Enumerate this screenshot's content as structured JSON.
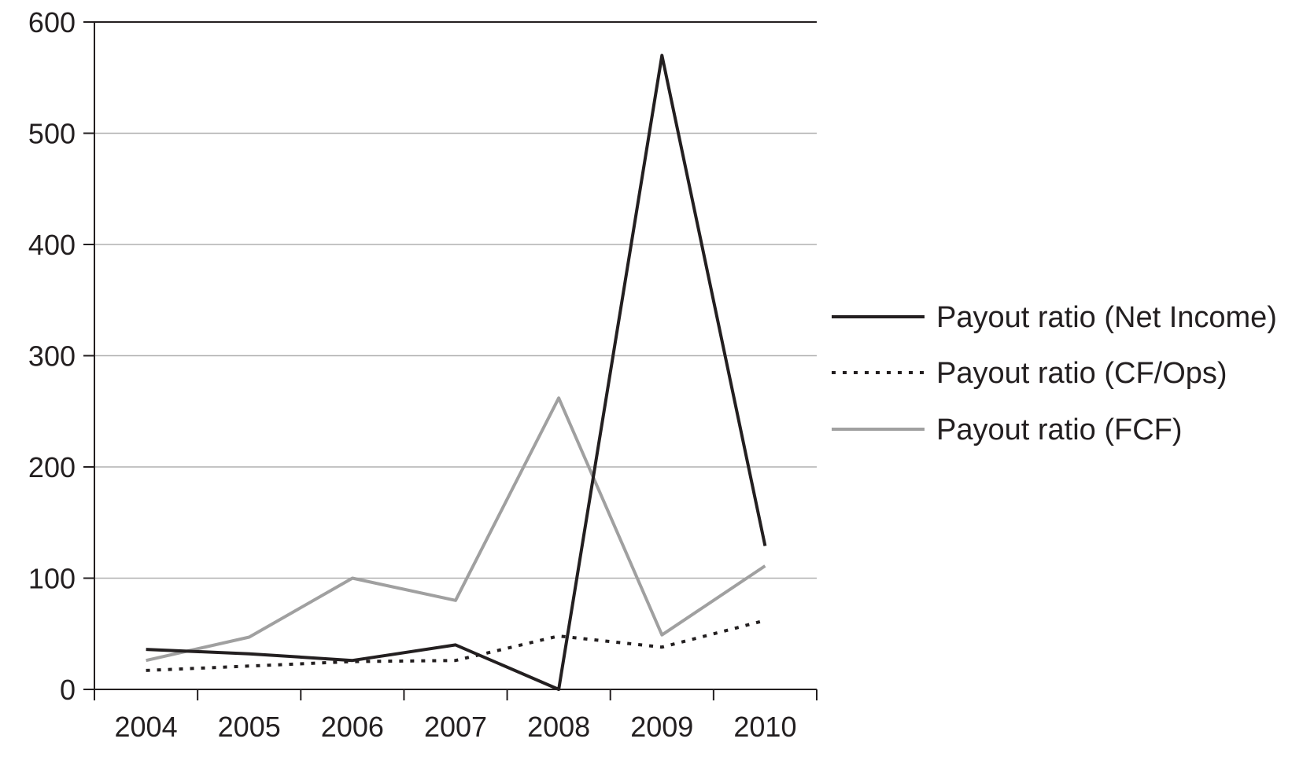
{
  "chart_data": {
    "type": "line",
    "title": "",
    "xlabel": "",
    "ylabel": "",
    "categories": [
      "2004",
      "2005",
      "2006",
      "2007",
      "2008",
      "2009",
      "2010"
    ],
    "ylim": [
      0,
      600
    ],
    "yticks": [
      0,
      100,
      200,
      300,
      400,
      500,
      600
    ],
    "grid": "horizontal",
    "legend_position": "right",
    "series": [
      {
        "name": "Payout ratio (Net Income)",
        "style": "solid",
        "color": "#231f20",
        "values": [
          36,
          32,
          26,
          40,
          0,
          570,
          129
        ]
      },
      {
        "name": "Payout ratio (CF/Ops)",
        "style": "dotted",
        "color": "#231f20",
        "values": [
          17,
          21,
          25,
          26,
          48,
          38,
          62
        ]
      },
      {
        "name": "Payout ratio (FCF)",
        "style": "solid",
        "color": "#a0a0a0",
        "values": [
          26,
          47,
          100,
          80,
          262,
          49,
          111
        ]
      }
    ]
  }
}
